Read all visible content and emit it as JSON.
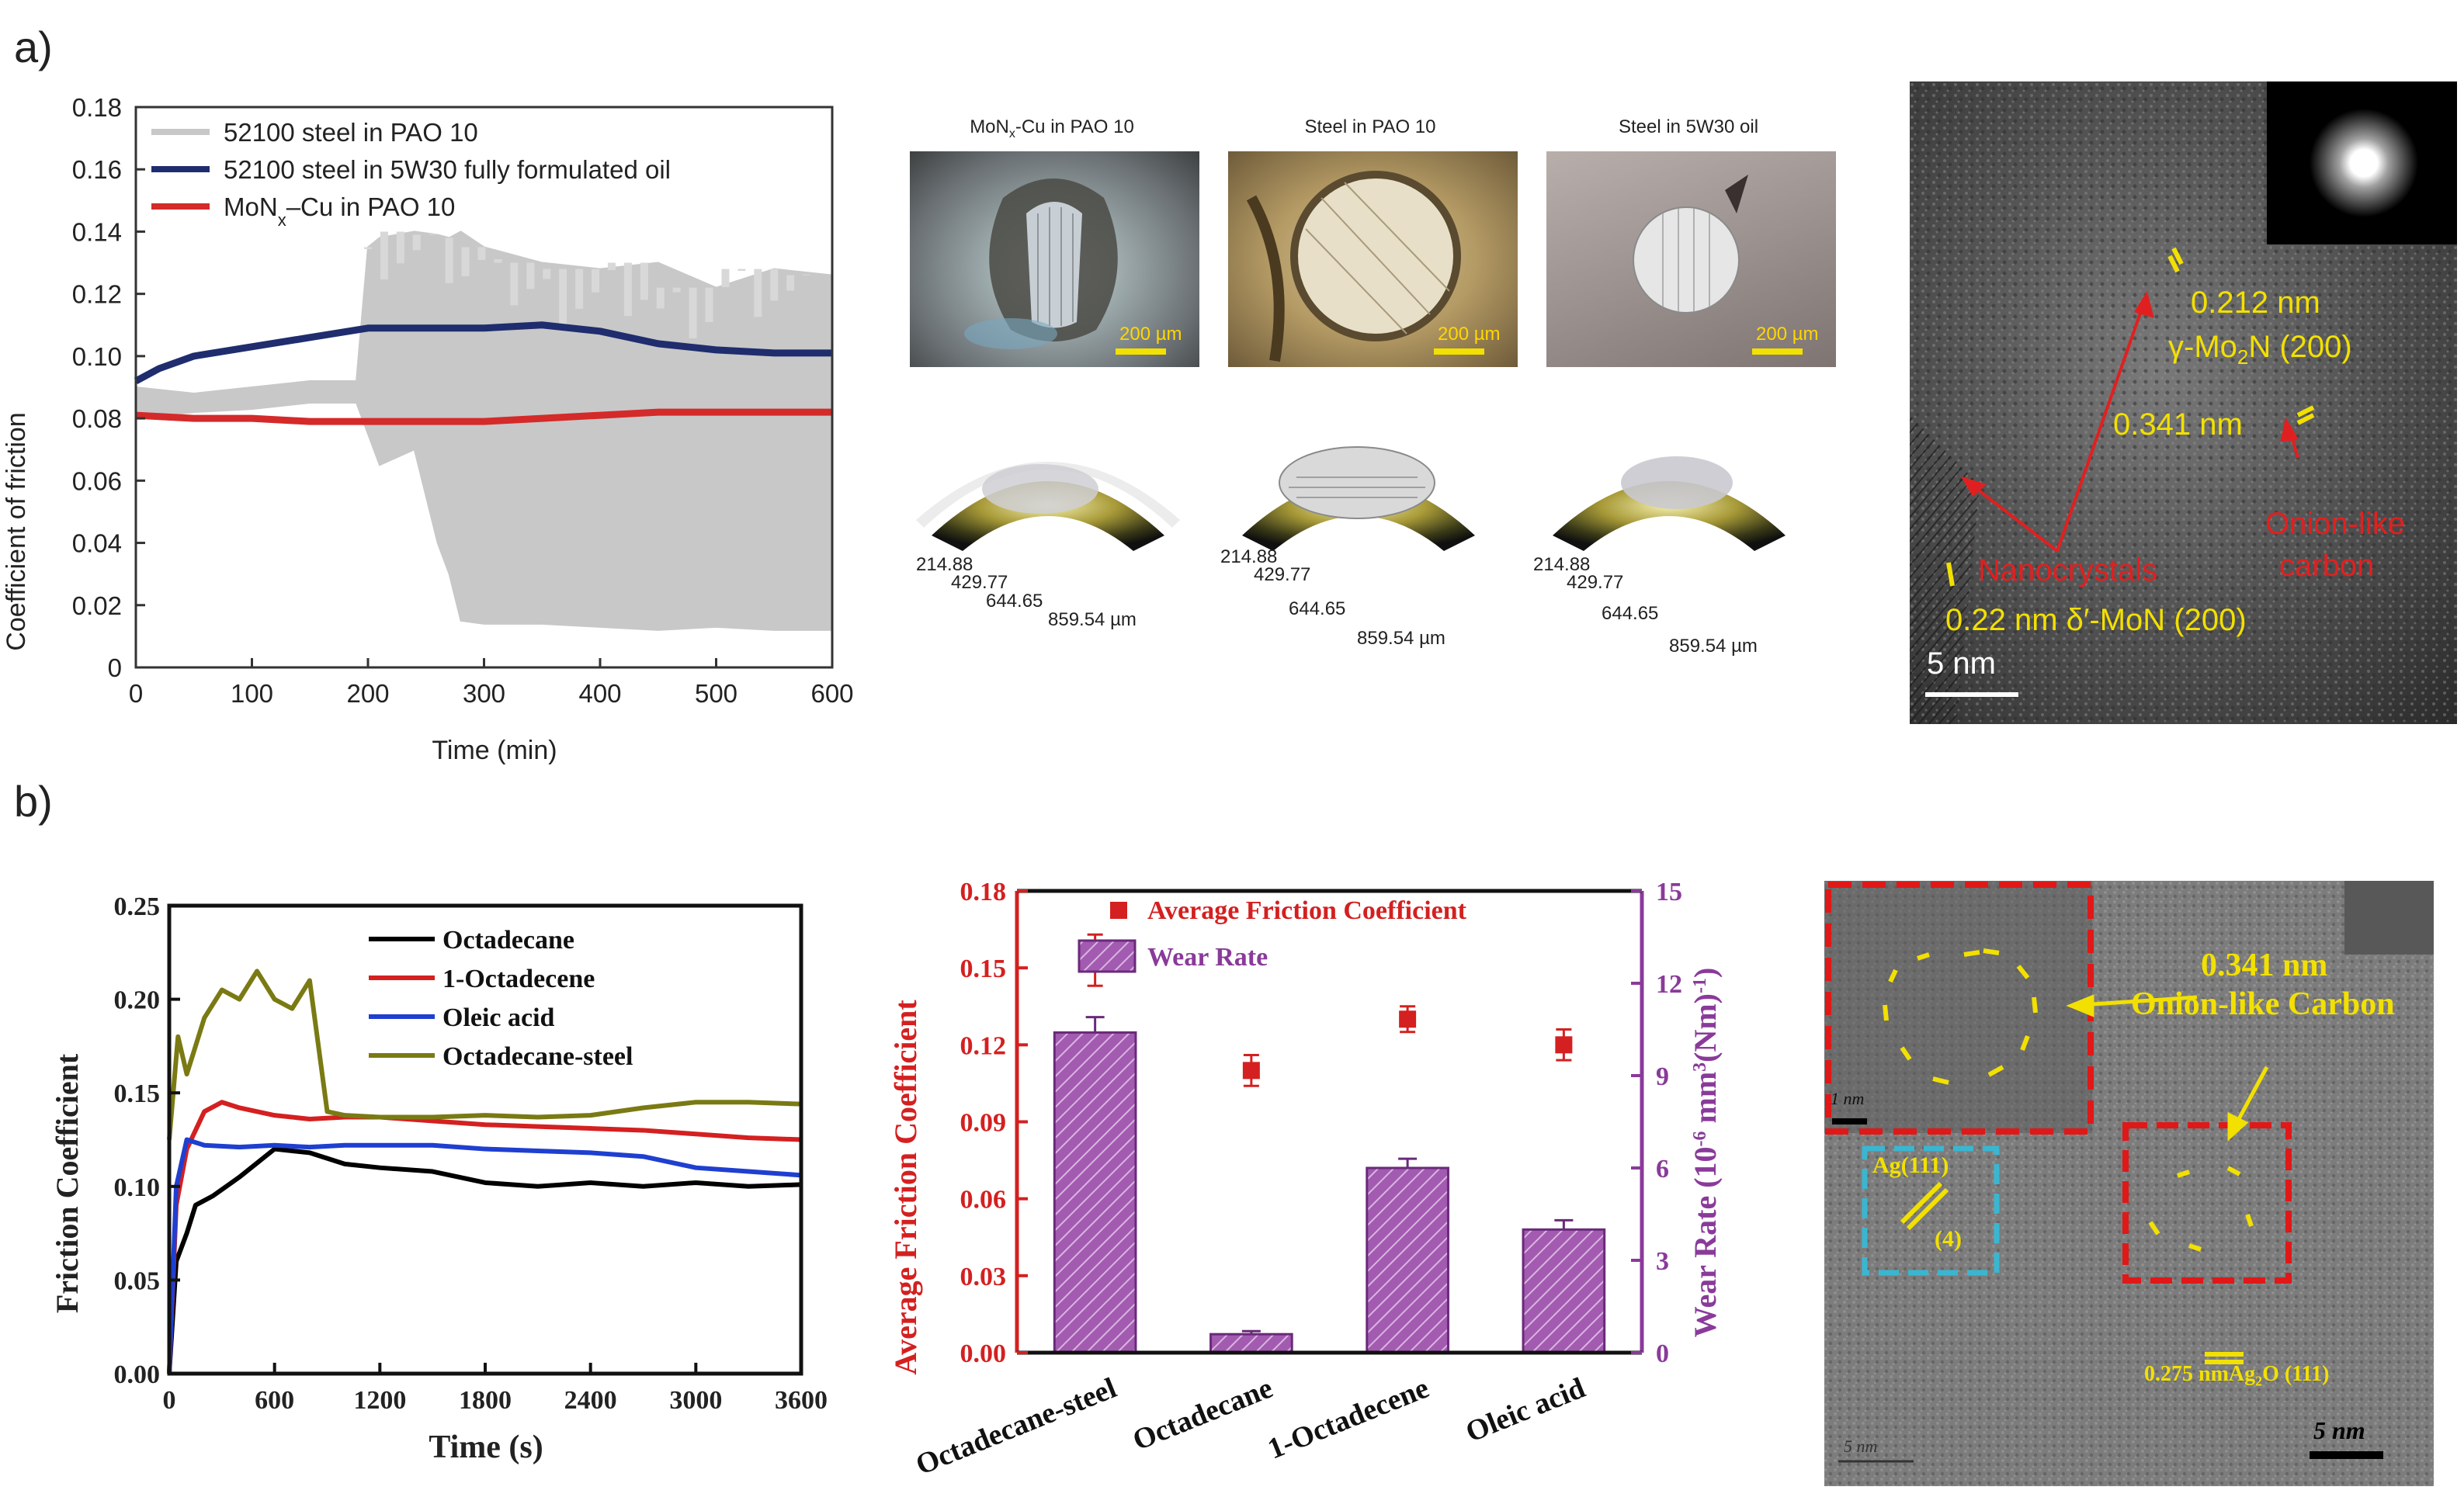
{
  "panel_labels": {
    "a": "a)",
    "b": "b)"
  },
  "chart_data": [
    {
      "type": "line",
      "title": "",
      "xlabel": "Time (min)",
      "ylabel": "Coefficient of friction",
      "xlim": [
        0,
        600
      ],
      "ylim": [
        0,
        0.18
      ],
      "xticks": [
        "0",
        "100",
        "200",
        "300",
        "400",
        "500",
        "600"
      ],
      "yticks": [
        "0",
        "0.02",
        "0.04",
        "0.06",
        "0.08",
        "0.10",
        "0.12",
        "0.14",
        "0.16",
        "0.18"
      ],
      "legend": [
        {
          "label": "52100 steel in PAO 10",
          "color": "#c8c8c8"
        },
        {
          "label": "52100 steel in 5W30 fully formulated oil",
          "color": "#1f2d6e"
        },
        {
          "label": "MoN",
          "sub": "x",
          "tail": "–Cu in PAO 10",
          "color": "#d42a2a"
        }
      ],
      "series": [
        {
          "name": "52100 steel in PAO 10",
          "color": "#c8c8c8",
          "band_x": [
            0,
            50,
            100,
            150,
            190,
            200,
            210,
            240,
            260,
            270,
            280,
            300,
            350,
            400,
            450,
            500,
            550,
            600
          ],
          "upper": [
            0.09,
            0.088,
            0.09,
            0.092,
            0.092,
            0.135,
            0.138,
            0.14,
            0.139,
            0.138,
            0.14,
            0.135,
            0.13,
            0.128,
            0.13,
            0.122,
            0.128,
            0.126
          ],
          "lower": [
            0.08,
            0.082,
            0.083,
            0.085,
            0.085,
            0.075,
            0.065,
            0.07,
            0.04,
            0.03,
            0.015,
            0.014,
            0.014,
            0.013,
            0.012,
            0.013,
            0.012,
            0.012
          ]
        },
        {
          "name": "52100 steel in 5W30 fully formulated oil",
          "color": "#1f2d6e",
          "x": [
            0,
            20,
            50,
            100,
            150,
            200,
            250,
            300,
            350,
            400,
            450,
            500,
            550,
            600
          ],
          "y": [
            0.092,
            0.096,
            0.1,
            0.103,
            0.106,
            0.109,
            0.109,
            0.109,
            0.11,
            0.108,
            0.104,
            0.102,
            0.101,
            0.101
          ]
        },
        {
          "name": "MoNx–Cu in PAO 10",
          "color": "#d42a2a",
          "x": [
            0,
            50,
            100,
            150,
            200,
            250,
            300,
            350,
            400,
            450,
            500,
            550,
            600
          ],
          "y": [
            0.081,
            0.08,
            0.08,
            0.079,
            0.079,
            0.079,
            0.079,
            0.08,
            0.081,
            0.082,
            0.082,
            0.082,
            0.082
          ]
        }
      ]
    },
    {
      "type": "line",
      "title": "",
      "xlabel": "Time (s)",
      "ylabel": "Friction Coefficient",
      "xlim": [
        0,
        3600
      ],
      "ylim": [
        0,
        0.25
      ],
      "xticks": [
        "0",
        "600",
        "1200",
        "1800",
        "2400",
        "3000",
        "3600"
      ],
      "yticks": [
        "0.00",
        "0.05",
        "0.10",
        "0.15",
        "0.20",
        "0.25"
      ],
      "legend": [
        {
          "label": "Octadecane",
          "color": "#000000"
        },
        {
          "label": "1-Octadecene",
          "color": "#d42020"
        },
        {
          "label": "Oleic acid",
          "color": "#1f3fd0"
        },
        {
          "label": "Octadecane-steel",
          "color": "#7a7a14"
        }
      ],
      "series": [
        {
          "name": "Octadecane",
          "color": "#000000",
          "x": [
            0,
            40,
            100,
            150,
            250,
            400,
            600,
            800,
            1000,
            1200,
            1500,
            1800,
            2100,
            2400,
            2700,
            3000,
            3300,
            3600
          ],
          "y": [
            0.0,
            0.06,
            0.075,
            0.09,
            0.095,
            0.105,
            0.12,
            0.118,
            0.112,
            0.11,
            0.108,
            0.102,
            0.1,
            0.102,
            0.1,
            0.102,
            0.1,
            0.101
          ]
        },
        {
          "name": "1-Octadecene",
          "color": "#d42020",
          "x": [
            0,
            40,
            100,
            200,
            300,
            400,
            600,
            800,
            1000,
            1200,
            1500,
            1800,
            2100,
            2400,
            2700,
            3000,
            3300,
            3600
          ],
          "y": [
            0.0,
            0.09,
            0.12,
            0.14,
            0.145,
            0.142,
            0.138,
            0.136,
            0.137,
            0.137,
            0.135,
            0.133,
            0.132,
            0.131,
            0.13,
            0.128,
            0.126,
            0.125
          ]
        },
        {
          "name": "Oleic acid",
          "color": "#1f3fd0",
          "x": [
            0,
            40,
            100,
            200,
            400,
            600,
            800,
            1000,
            1200,
            1500,
            1800,
            2100,
            2400,
            2700,
            3000,
            3300,
            3600
          ],
          "y": [
            0.0,
            0.1,
            0.125,
            0.122,
            0.121,
            0.122,
            0.121,
            0.122,
            0.122,
            0.122,
            0.12,
            0.119,
            0.118,
            0.116,
            0.11,
            0.108,
            0.106
          ]
        },
        {
          "name": "Octadecane-steel",
          "color": "#7a7a14",
          "x": [
            0,
            50,
            100,
            200,
            300,
            400,
            500,
            600,
            700,
            800,
            900,
            1000,
            1200,
            1500,
            1800,
            2100,
            2400,
            2700,
            3000,
            3300,
            3600
          ],
          "y": [
            0.125,
            0.18,
            0.16,
            0.19,
            0.205,
            0.2,
            0.215,
            0.2,
            0.195,
            0.21,
            0.14,
            0.138,
            0.137,
            0.137,
            0.138,
            0.137,
            0.138,
            0.142,
            0.145,
            0.145,
            0.144
          ]
        }
      ]
    },
    {
      "type": "bar",
      "title": "",
      "xlabel": "",
      "ylabel": "Average Friction Coefficient",
      "y2label": "Wear Rate (10",
      "y2label_sup": "-6",
      "y2label_tail": " mm",
      "y2label_sup2": "3",
      "y2label_end": "(Nm)",
      "y2label_sup3": "-1",
      "y2label_close": ")",
      "categories": [
        "Octadecane-steel",
        "Octadecane",
        "1-Octadecene",
        "Oleic acid"
      ],
      "ylim": [
        0,
        0.18
      ],
      "y2lim": [
        0,
        15
      ],
      "yticks": [
        "0.00",
        "0.03",
        "0.06",
        "0.09",
        "0.12",
        "0.15",
        "0.18"
      ],
      "y2ticks": [
        "0",
        "3",
        "6",
        "9",
        "12",
        "15"
      ],
      "legend": [
        {
          "label": "Average Friction Coefficient",
          "color": "#d42020"
        },
        {
          "label": "Wear Rate",
          "color": "#9b4fa8"
        }
      ],
      "series": [
        {
          "name": "Wear Rate",
          "axis": "right",
          "values": [
            10.4,
            0.6,
            6.0,
            4.0
          ],
          "errors": [
            0.5,
            0.1,
            0.3,
            0.3
          ]
        },
        {
          "name": "Average Friction Coefficient",
          "axis": "left",
          "values": [
            0.153,
            0.11,
            0.13,
            0.12
          ],
          "errors": [
            0.01,
            0.006,
            0.005,
            0.006
          ]
        }
      ]
    }
  ],
  "panel_a_images": {
    "captions": [
      "MoN",
      "Steel in PAO 10",
      "Steel in 5W30 oil"
    ],
    "caption1_sub": "x",
    "caption1_tail": "-Cu in PAO 10",
    "scale": "200 µm",
    "surface_labels": [
      "214.88",
      "429.77",
      "644.65",
      "859.54 µm"
    ]
  },
  "tem_a": {
    "scale": "5 nm",
    "label1": "0.212 nm",
    "label2a": "γ-Mo",
    "label2sub": "2",
    "label2b": "N (200)",
    "label3": "0.341 nm",
    "label4": "Nanocrystals",
    "label5a": "Onion-like",
    "label5b": "carbon",
    "label6": "0.22 nm δ′-MoN (200)"
  },
  "tem_b": {
    "label1": "0.341 nm",
    "label2": "Onion-like Carbon",
    "label3": "Ag(111)",
    "label4": "(4)",
    "label5": "0.275 nmAg",
    "label5sub": "2",
    "label5tail": "O (111)",
    "scale": "5 nm",
    "scale_inset": "1 nm",
    "scale_faint": "5 nm"
  }
}
